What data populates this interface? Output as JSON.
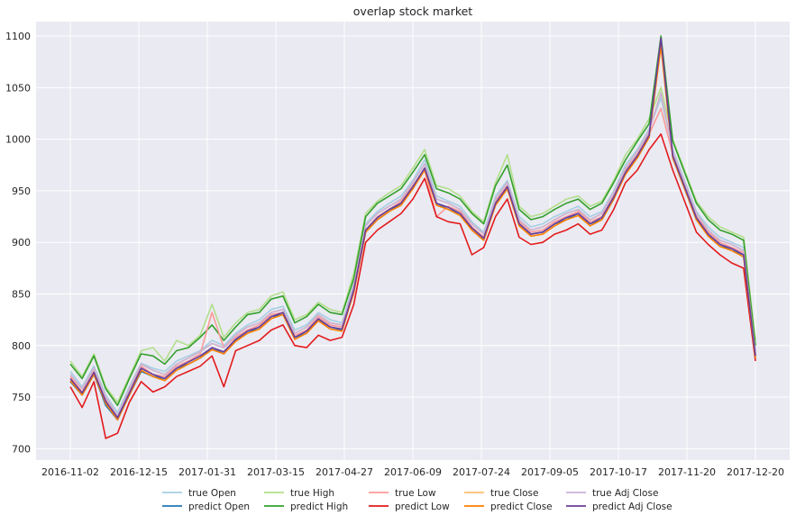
{
  "chart_data": {
    "type": "line",
    "title": "overlap stock market",
    "xlabel": "",
    "ylabel": "",
    "grid": true,
    "legend_position": "bottom-center",
    "ylim": [
      689,
      1114
    ],
    "y_ticks": [
      "700",
      "750",
      "800",
      "850",
      "900",
      "950",
      "1000",
      "1050",
      "1100"
    ],
    "x_ticks": [
      "2016-11-02",
      "2016-12-15",
      "2017-01-31",
      "2017-03-15",
      "2017-04-27",
      "2017-06-09",
      "2017-07-24",
      "2017-09-05",
      "2017-10-17",
      "2017-11-20",
      "2017-12-20"
    ],
    "x": [
      "2016-11-02",
      "2016-11-09",
      "2016-11-16",
      "2016-11-23",
      "2016-12-01",
      "2016-12-08",
      "2016-12-15",
      "2016-12-22",
      "2017-01-03",
      "2017-01-10",
      "2017-01-17",
      "2017-01-24",
      "2017-01-31",
      "2017-02-07",
      "2017-02-14",
      "2017-02-22",
      "2017-03-01",
      "2017-03-08",
      "2017-03-15",
      "2017-03-22",
      "2017-03-29",
      "2017-04-05",
      "2017-04-12",
      "2017-04-20",
      "2017-04-27",
      "2017-05-04",
      "2017-05-11",
      "2017-05-18",
      "2017-05-25",
      "2017-06-02",
      "2017-06-09",
      "2017-06-16",
      "2017-06-23",
      "2017-06-30",
      "2017-07-10",
      "2017-07-17",
      "2017-07-24",
      "2017-07-31",
      "2017-08-07",
      "2017-08-14",
      "2017-08-21",
      "2017-08-28",
      "2017-09-05",
      "2017-09-12",
      "2017-09-19",
      "2017-09-26",
      "2017-10-03",
      "2017-10-10",
      "2017-10-17",
      "2017-10-24",
      "2017-10-27",
      "2017-11-01",
      "2017-11-08",
      "2017-11-15",
      "2017-11-20",
      "2017-11-27",
      "2017-12-04",
      "2017-12-11",
      "2017-12-20"
    ],
    "series": [
      {
        "name": "true Open",
        "color": "#a6cee3",
        "values": [
          775,
          760,
          780,
          752,
          735,
          760,
          783,
          778,
          775,
          785,
          790,
          795,
          805,
          800,
          812,
          820,
          825,
          835,
          838,
          815,
          820,
          832,
          825,
          822,
          860,
          918,
          930,
          938,
          945,
          960,
          980,
          945,
          940,
          935,
          920,
          910,
          945,
          960,
          925,
          915,
          918,
          925,
          930,
          935,
          925,
          930,
          950,
          975,
          990,
          1010,
          1040,
          990,
          960,
          930,
          915,
          905,
          900,
          895,
          795
        ]
      },
      {
        "name": "predict Open",
        "color": "#1f78b4",
        "values": [
          765,
          752,
          772,
          742,
          728,
          752,
          775,
          770,
          768,
          778,
          782,
          788,
          798,
          792,
          805,
          812,
          818,
          828,
          830,
          808,
          812,
          825,
          818,
          815,
          852,
          910,
          922,
          930,
          938,
          952,
          972,
          938,
          932,
          928,
          912,
          902,
          938,
          952,
          918,
          908,
          910,
          918,
          922,
          928,
          918,
          922,
          942,
          968,
          982,
          1002,
          1095,
          982,
          952,
          922,
          908,
          898,
          892,
          888,
          790
        ]
      },
      {
        "name": "true High",
        "color": "#b2df8a",
        "values": [
          785,
          770,
          792,
          760,
          745,
          770,
          795,
          798,
          785,
          805,
          800,
          810,
          840,
          808,
          822,
          832,
          835,
          848,
          852,
          825,
          830,
          842,
          835,
          832,
          870,
          928,
          940,
          948,
          955,
          972,
          990,
          955,
          952,
          945,
          930,
          920,
          958,
          985,
          935,
          925,
          928,
          935,
          942,
          945,
          935,
          940,
          960,
          985,
          1000,
          1020,
          1050,
          1000,
          970,
          940,
          925,
          915,
          910,
          905,
          805
        ]
      },
      {
        "name": "predict High",
        "color": "#33a02c",
        "values": [
          782,
          768,
          790,
          758,
          742,
          768,
          792,
          790,
          782,
          795,
          798,
          808,
          820,
          805,
          818,
          830,
          832,
          845,
          848,
          822,
          828,
          840,
          832,
          830,
          865,
          925,
          938,
          945,
          952,
          968,
          985,
          952,
          948,
          942,
          928,
          918,
          955,
          975,
          932,
          922,
          925,
          932,
          938,
          942,
          932,
          938,
          958,
          980,
          998,
          1015,
          1100,
          998,
          968,
          938,
          922,
          912,
          908,
          902,
          800
        ]
      },
      {
        "name": "true Low",
        "color": "#fb9a99",
        "values": [
          770,
          755,
          775,
          748,
          730,
          755,
          780,
          772,
          770,
          780,
          785,
          792,
          832,
          798,
          808,
          815,
          820,
          830,
          832,
          810,
          815,
          828,
          820,
          818,
          850,
          912,
          925,
          932,
          940,
          955,
          970,
          925,
          935,
          930,
          915,
          905,
          940,
          955,
          920,
          910,
          912,
          920,
          925,
          930,
          920,
          925,
          945,
          970,
          985,
          1005,
          1030,
          985,
          955,
          925,
          910,
          900,
          895,
          890,
          790
        ]
      },
      {
        "name": "predict Low",
        "color": "#e31a1c",
        "values": [
          760,
          740,
          765,
          710,
          715,
          745,
          765,
          755,
          760,
          770,
          775,
          780,
          790,
          760,
          795,
          800,
          805,
          815,
          820,
          800,
          798,
          810,
          805,
          808,
          840,
          900,
          912,
          920,
          928,
          942,
          962,
          925,
          920,
          918,
          888,
          895,
          925,
          942,
          905,
          898,
          900,
          908,
          912,
          918,
          908,
          912,
          932,
          958,
          970,
          990,
          1005,
          970,
          940,
          910,
          898,
          888,
          880,
          875,
          785
        ]
      },
      {
        "name": "true Close",
        "color": "#fdbf6f",
        "values": [
          772,
          758,
          778,
          750,
          732,
          758,
          782,
          776,
          772,
          782,
          788,
          794,
          802,
          798,
          810,
          818,
          822,
          832,
          835,
          812,
          818,
          830,
          822,
          820,
          858,
          916,
          928,
          935,
          942,
          958,
          976,
          942,
          938,
          932,
          918,
          908,
          942,
          958,
          922,
          912,
          915,
          922,
          928,
          932,
          922,
          928,
          948,
          972,
          988,
          1008,
          1045,
          988,
          958,
          928,
          912,
          902,
          898,
          892,
          792
        ]
      },
      {
        "name": "predict Close",
        "color": "#ff7f00",
        "values": [
          766,
          752,
          772,
          744,
          728,
          752,
          776,
          770,
          766,
          776,
          782,
          788,
          796,
          792,
          804,
          812,
          816,
          826,
          830,
          806,
          812,
          824,
          816,
          814,
          852,
          910,
          922,
          930,
          936,
          952,
          970,
          936,
          932,
          926,
          912,
          902,
          936,
          952,
          916,
          906,
          908,
          916,
          922,
          926,
          916,
          922,
          942,
          966,
          982,
          1002,
          1090,
          982,
          952,
          922,
          906,
          896,
          892,
          886,
          788
        ]
      },
      {
        "name": "true Adj Close",
        "color": "#cab2d6",
        "values": [
          772,
          758,
          778,
          750,
          732,
          758,
          782,
          776,
          772,
          782,
          788,
          794,
          802,
          798,
          810,
          818,
          822,
          832,
          835,
          812,
          818,
          830,
          822,
          820,
          858,
          916,
          928,
          935,
          942,
          958,
          976,
          942,
          938,
          932,
          918,
          908,
          942,
          958,
          922,
          912,
          915,
          922,
          928,
          932,
          922,
          928,
          948,
          972,
          988,
          1008,
          1045,
          988,
          958,
          928,
          912,
          902,
          898,
          892,
          792
        ]
      },
      {
        "name": "predict Adj Close",
        "color": "#6a3d9a",
        "values": [
          768,
          754,
          774,
          746,
          730,
          754,
          778,
          772,
          768,
          778,
          784,
          790,
          798,
          794,
          806,
          814,
          818,
          828,
          832,
          808,
          814,
          826,
          818,
          816,
          854,
          912,
          924,
          932,
          938,
          954,
          972,
          938,
          934,
          928,
          914,
          904,
          938,
          954,
          918,
          908,
          910,
          918,
          924,
          928,
          918,
          924,
          944,
          968,
          984,
          1004,
          1098,
          984,
          954,
          924,
          908,
          898,
          894,
          888,
          790
        ]
      }
    ]
  }
}
